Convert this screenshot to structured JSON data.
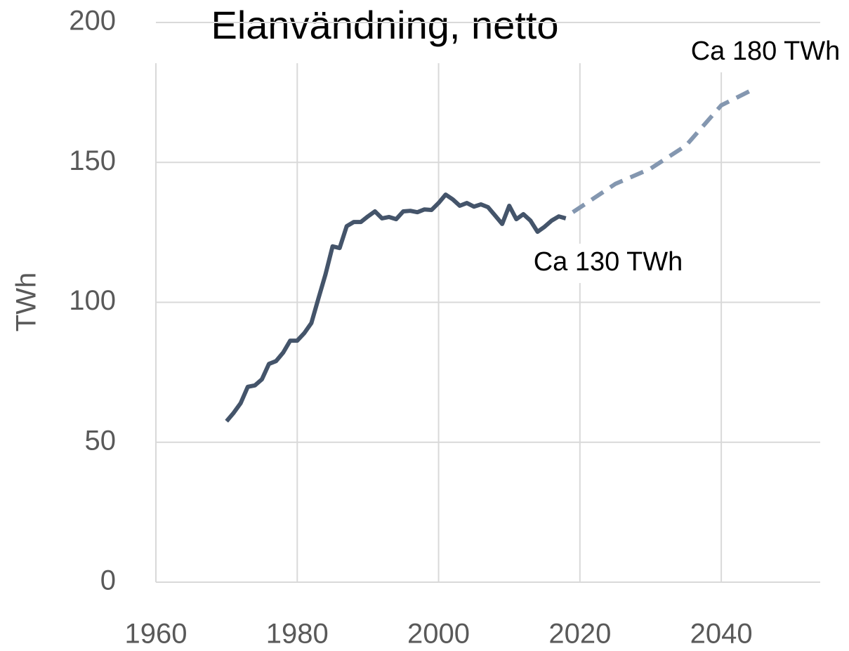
{
  "chart_data": {
    "type": "line",
    "title": "Elanvändning, netto",
    "y_label": "TWh",
    "annotations": [
      "Ca 180 TWh",
      "Ca 130 TWh"
    ],
    "xlim": [
      1960,
      2054
    ],
    "xticks": [
      1960,
      1980,
      2000,
      2020,
      2040
    ],
    "ylim": [
      0,
      200
    ],
    "yticks": [
      0,
      50,
      100,
      150,
      200
    ],
    "grid": true,
    "series": [
      {
        "color": "#44546a",
        "dashed": false,
        "x": [
          1970,
          1971,
          1972,
          1973,
          1974,
          1975,
          1976,
          1977,
          1978,
          1979,
          1980,
          1981,
          1982,
          1983,
          1984,
          1985,
          1986,
          1987,
          1988,
          1989,
          1990,
          1991,
          1992,
          1993,
          1994,
          1995,
          1996,
          1997,
          1998,
          1999,
          2000,
          2001,
          2002,
          2003,
          2004,
          2005,
          2006,
          2007,
          2008,
          2009,
          2010,
          2011,
          2012,
          2013,
          2014,
          2015,
          2016,
          2017,
          2018
        ],
        "values": [
          57.5,
          60.5,
          64,
          69.8,
          70.3,
          72.5,
          78,
          79,
          82,
          86.3,
          86.3,
          89,
          92.6,
          101.4,
          110,
          120,
          119.4,
          127.2,
          128.7,
          128.7,
          130.7,
          132.5,
          130,
          130.5,
          129.7,
          132.5,
          132.7,
          132.2,
          133.2,
          133,
          135.5,
          138.5,
          136.8,
          134.5,
          135.5,
          134.2,
          135,
          134,
          131,
          128,
          134.5,
          129.7,
          131.5,
          129.2,
          125.2,
          127,
          129.2,
          130.7,
          130
        ]
      },
      {
        "color": "#8497b0",
        "dashed": true,
        "x": [
          2019,
          2025,
          2030,
          2035,
          2040,
          2045
        ],
        "values": [
          132.2,
          142.3,
          147.8,
          156,
          170.4,
          176.7
        ]
      }
    ]
  }
}
